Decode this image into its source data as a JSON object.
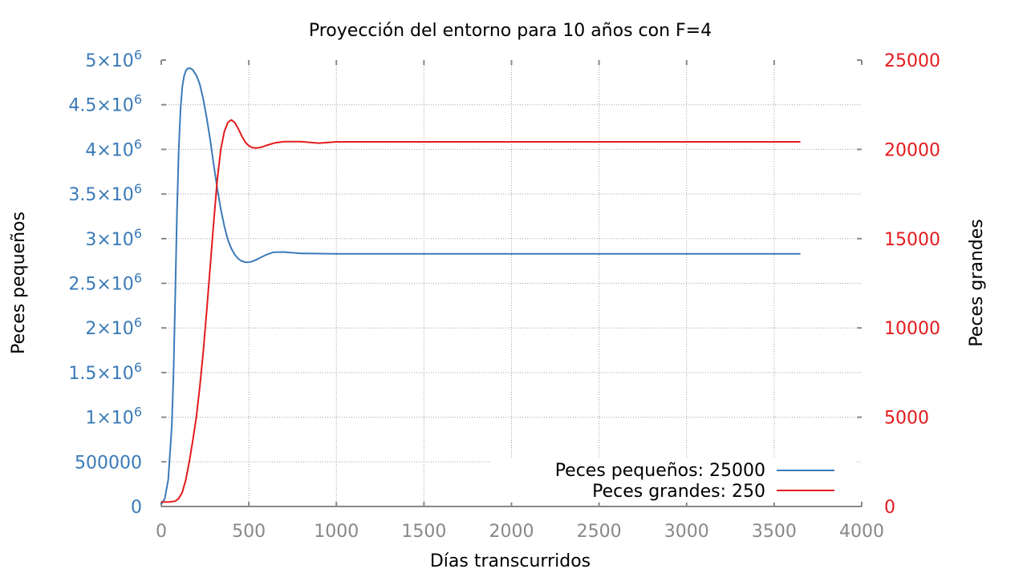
{
  "chart_data": {
    "type": "line",
    "title": "Proyección del entorno para 10 años con F=4",
    "xlabel": "Días transcurridos",
    "ylabel_left": "Peces pequeños",
    "ylabel_right": "Peces grandes",
    "xlim": [
      0,
      4000
    ],
    "ylim_left": [
      0,
      5000000
    ],
    "ylim_right": [
      0,
      25000
    ],
    "x_ticks": [
      "0",
      "500",
      "1000",
      "1500",
      "2000",
      "2500",
      "3000",
      "3500",
      "4000"
    ],
    "y_left_ticks": [
      {
        "mantissa": "0",
        "exp": ""
      },
      {
        "mantissa": "500000",
        "exp": ""
      },
      {
        "mantissa": "1×10",
        "exp": "6"
      },
      {
        "mantissa": "1.5×10",
        "exp": "6"
      },
      {
        "mantissa": "2×10",
        "exp": "6"
      },
      {
        "mantissa": "2.5×10",
        "exp": "6"
      },
      {
        "mantissa": "3×10",
        "exp": "6"
      },
      {
        "mantissa": "3.5×10",
        "exp": "6"
      },
      {
        "mantissa": "4×10",
        "exp": "6"
      },
      {
        "mantissa": "4.5×10",
        "exp": "6"
      },
      {
        "mantissa": "5×10",
        "exp": "6"
      }
    ],
    "y_right_ticks": [
      "0",
      "5000",
      "10000",
      "15000",
      "20000",
      "25000"
    ],
    "grid": true,
    "legend_position": "bottom-right",
    "colors": {
      "small": "#3a7ab8",
      "large": "#e41a1c",
      "axis": "#888888",
      "grid": "#a0a0a0"
    },
    "series": [
      {
        "name": "Peces pequeños: 25000",
        "axis": "left",
        "x": [
          0,
          20,
          40,
          60,
          70,
          80,
          90,
          100,
          110,
          120,
          130,
          140,
          150,
          160,
          170,
          180,
          200,
          220,
          240,
          260,
          280,
          300,
          320,
          340,
          360,
          380,
          400,
          420,
          440,
          460,
          480,
          500,
          520,
          540,
          560,
          600,
          640,
          700,
          800,
          1000,
          1500,
          2000,
          2500,
          3000,
          3650
        ],
        "y": [
          25000,
          90000,
          300000,
          900000,
          1500000,
          2400000,
          3300000,
          4000000,
          4450000,
          4700000,
          4820000,
          4880000,
          4905000,
          4910000,
          4905000,
          4890000,
          4830000,
          4730000,
          4560000,
          4350000,
          4100000,
          3820000,
          3560000,
          3330000,
          3140000,
          2990000,
          2890000,
          2820000,
          2775000,
          2748000,
          2737000,
          2735000,
          2745000,
          2762000,
          2782000,
          2820000,
          2848000,
          2850000,
          2835000,
          2830000,
          2830000,
          2830000,
          2830000,
          2830000,
          2830000
        ]
      },
      {
        "name": "Peces grandes: 250",
        "axis": "right",
        "x": [
          0,
          50,
          80,
          100,
          120,
          140,
          160,
          180,
          200,
          220,
          240,
          260,
          280,
          300,
          320,
          340,
          360,
          380,
          400,
          420,
          440,
          460,
          480,
          500,
          520,
          540,
          560,
          580,
          600,
          650,
          700,
          800,
          900,
          1000,
          1500,
          2000,
          2500,
          3000,
          3650
        ],
        "y": [
          250,
          250,
          300,
          450,
          800,
          1500,
          2500,
          3700,
          5000,
          6700,
          8700,
          11000,
          13500,
          16000,
          18300,
          20000,
          21000,
          21500,
          21650,
          21500,
          21150,
          20750,
          20400,
          20200,
          20100,
          20080,
          20100,
          20150,
          20220,
          20370,
          20430,
          20430,
          20350,
          20420,
          20420,
          20420,
          20420,
          20420,
          20420
        ]
      }
    ]
  }
}
